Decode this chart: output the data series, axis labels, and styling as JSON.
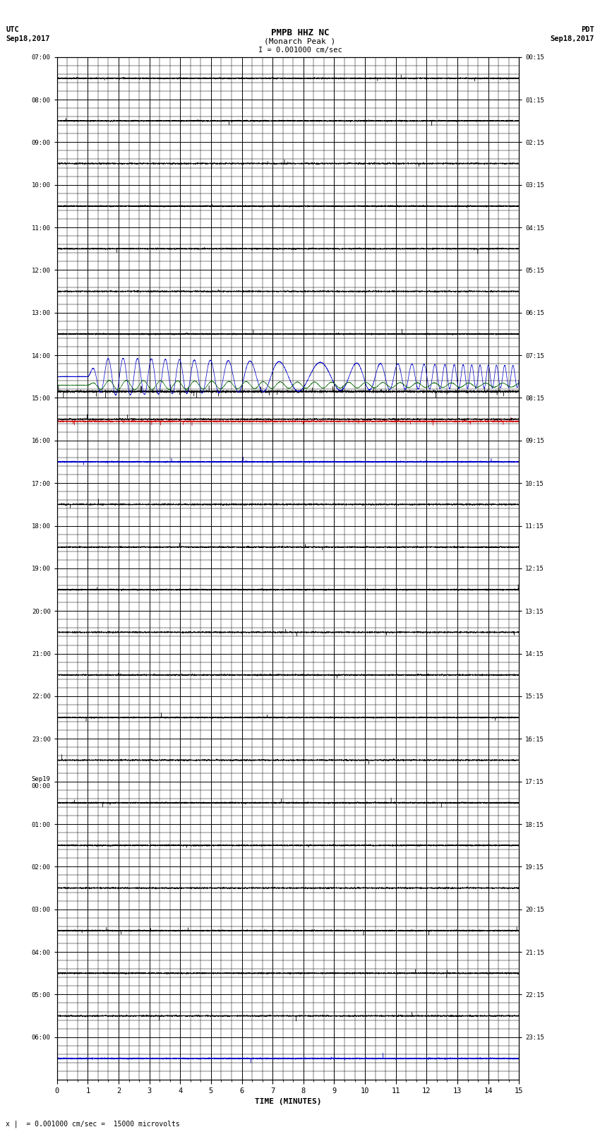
{
  "title_line1": "PMPB HHZ NC",
  "title_line2": "(Monarch Peak )",
  "scale_text": "I = 0.001000 cm/sec",
  "bottom_note": "x |  = 0.001000 cm/sec =  15000 microvolts",
  "xlabel": "TIME (MINUTES)",
  "left_times": [
    "07:00",
    "08:00",
    "09:00",
    "10:00",
    "11:00",
    "12:00",
    "13:00",
    "14:00",
    "15:00",
    "16:00",
    "17:00",
    "18:00",
    "19:00",
    "20:00",
    "21:00",
    "22:00",
    "23:00",
    "Sep19\n00:00",
    "01:00",
    "02:00",
    "03:00",
    "04:00",
    "05:00",
    "06:00"
  ],
  "right_times": [
    "00:15",
    "01:15",
    "02:15",
    "03:15",
    "04:15",
    "05:15",
    "06:15",
    "07:15",
    "08:15",
    "09:15",
    "10:15",
    "11:15",
    "12:15",
    "13:15",
    "14:15",
    "15:15",
    "16:15",
    "17:15",
    "18:15",
    "19:15",
    "20:15",
    "21:15",
    "22:15",
    "23:15"
  ],
  "n_rows": 24,
  "n_subrows": 5,
  "n_minutes": 15,
  "n_major_vert": 15,
  "n_minor_vert": 3,
  "background_color": "#ffffff",
  "grid_major_color": "#000000",
  "grid_minor_color": "#888888",
  "trace_color_blue": "#0000cc",
  "trace_color_green": "#006600",
  "trace_color_red": "#cc0000",
  "trace_color_black": "#000000",
  "signal_row_idx": 7,
  "figwidth": 8.5,
  "figheight": 16.13
}
